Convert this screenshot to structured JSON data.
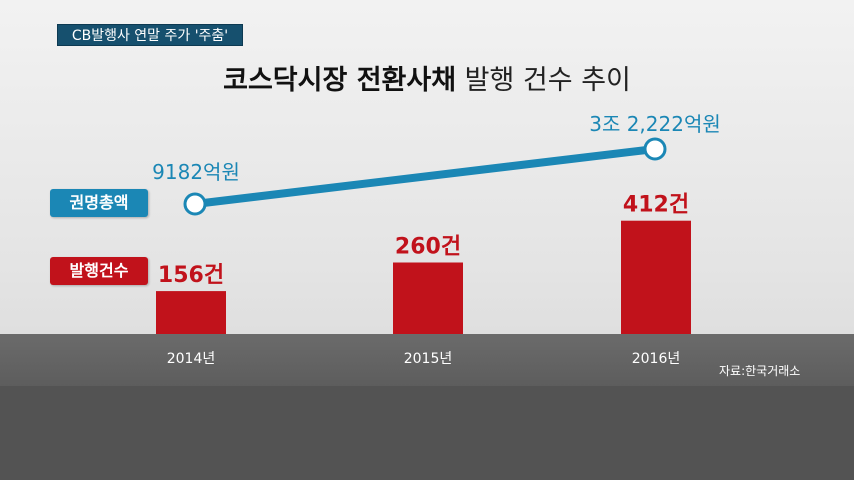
{
  "header_tag": "CB발행사 연말 주가 '주춤'",
  "title_bold": "코스닥시장 전환사채",
  "title_light": "발행 건수 추이",
  "source": "자료:한국거래소",
  "legend": {
    "amount": "권명총액",
    "count": "발행건수"
  },
  "colors": {
    "line": "#1b87b5",
    "bar": "#c1121b",
    "tag": "#16506e",
    "base": "#535353"
  },
  "chart_data": [
    {
      "type": "bar",
      "categories": [
        "2014년",
        "2015년",
        "2016년"
      ],
      "series": [
        {
          "name": "발행건수",
          "values": [
            156,
            260,
            412
          ]
        }
      ],
      "data_labels": [
        "156건",
        "260건",
        "412건"
      ],
      "ylim": [
        0,
        450
      ],
      "title": "",
      "xlabel": "",
      "ylabel": ""
    },
    {
      "type": "line",
      "categories": [
        "2014년",
        "2016년"
      ],
      "series": [
        {
          "name": "권명총액",
          "values": [
            9182,
            32222
          ]
        }
      ],
      "data_labels": [
        "9182억원",
        "3조 2,222억원"
      ],
      "title": "",
      "xlabel": "",
      "ylabel": ""
    }
  ]
}
